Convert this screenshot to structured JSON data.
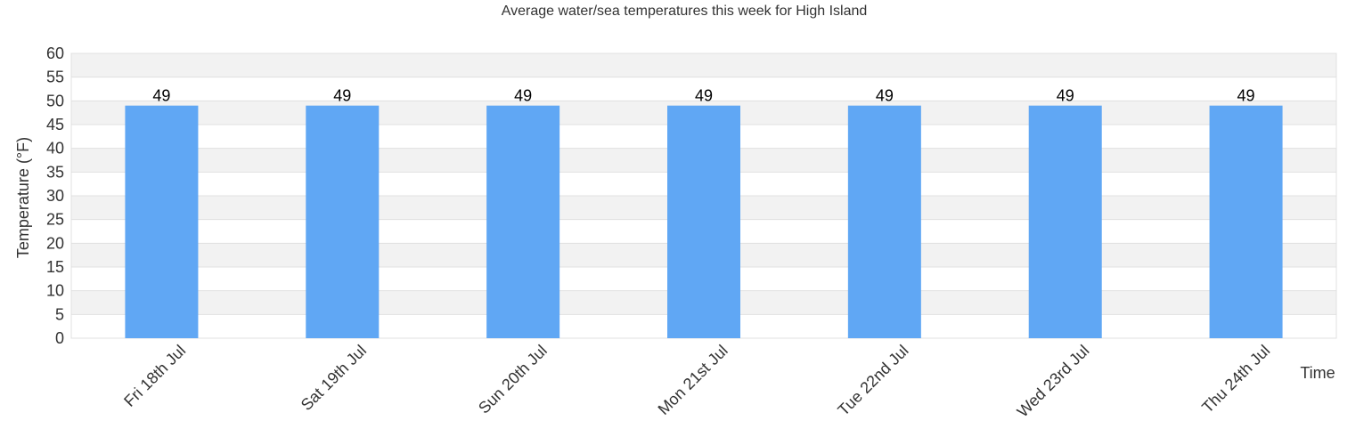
{
  "chart_data": {
    "type": "bar",
    "title": "Average water/sea temperatures this week for High Island",
    "xlabel": "Time",
    "ylabel": "Temperature (°F)",
    "categories": [
      "Fri 18th Jul",
      "Sat 19th Jul",
      "Sun 20th Jul",
      "Mon 21st Jul",
      "Tue 22nd Jul",
      "Wed 23rd Jul",
      "Thu 24th Jul"
    ],
    "values": [
      49,
      49,
      49,
      49,
      49,
      49,
      49
    ],
    "data_labels": [
      "49",
      "49",
      "49",
      "49",
      "49",
      "49",
      "49"
    ],
    "ylim": [
      0,
      60
    ],
    "y_ticks": [
      0,
      5,
      10,
      15,
      20,
      25,
      30,
      35,
      40,
      45,
      50,
      55,
      60
    ],
    "grid": true,
    "legend": "none",
    "bar_color": "#60a7f4",
    "band_color": "#f2f2f2",
    "grid_color": "#e0e0e0"
  }
}
